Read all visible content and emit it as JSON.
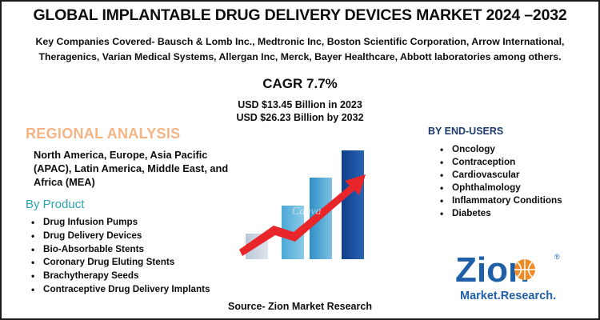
{
  "title": "GLOBAL IMPLANTABLE DRUG DELIVERY DEVICES MARKET 2024 –2032",
  "companies": {
    "line1": "Key Companies Covered- Bausch & Lomb Inc., Medtronic Inc, Boston Scientific Corporation, Arrow International,",
    "line2": "Theragenics, Varian Medical Systems, Allergan Inc, Merck, Bayer Healthcare, Abbott laboratories among others."
  },
  "cagr": "CAGR 7.7%",
  "usd_2023": "USD $13.45 Billion in 2023",
  "usd_2032": "USD $26.23 Billion by 2032",
  "regional": {
    "title": "REGIONAL ANALYSIS",
    "text": "North America, Europe, Asia Pacific (APAC), Latin America, Middle East, and Africa (MEA)"
  },
  "by_product": {
    "title": "By Product",
    "items": [
      "Drug Infusion Pumps",
      "Drug Delivery Devices",
      "Bio-Absorbable Stents",
      "Coronary Drug Eluting Stents",
      "Brachytherapy Seeds",
      "Contraceptive Drug Delivery Implants"
    ]
  },
  "end_users": {
    "title": "BY END-USERS",
    "items": [
      "Oncology",
      "Contraception",
      "Cardiovascular",
      "Ophthalmology",
      "Inflammatory Conditions",
      "Diabetes"
    ]
  },
  "watermark": "Canva",
  "source": "Source- Zion Market Research",
  "logo": {
    "main": "Zion",
    "sub": "Market.Research.",
    "registered": "®"
  },
  "colors": {
    "regional_title": "#f4b483",
    "by_product_title": "#2aa5b3",
    "end_users_title": "#1e3a6e",
    "arrow": "#e8262a",
    "logo_blue": "#1f5fa8",
    "logo_orange": "#f08a24"
  }
}
